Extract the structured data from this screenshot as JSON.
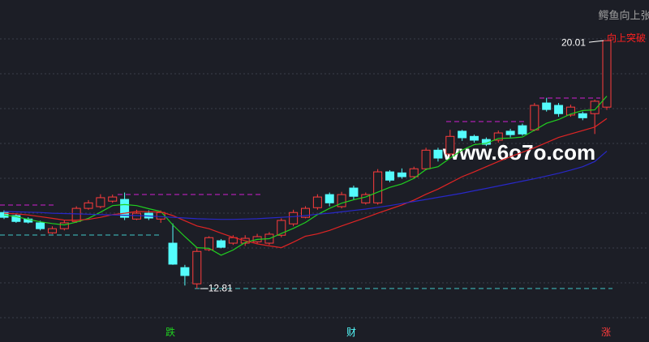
{
  "chart_data": {
    "type": "candlestick",
    "ylim": [
      11.26,
      21.19
    ],
    "up_color": "#ff3c3c",
    "down_color": "#54fcfc",
    "open": [
      15.02,
      14.93,
      14.83,
      14.72,
      14.43,
      14.55,
      14.76,
      15.14,
      15.19,
      15.35,
      15.4,
      14.83,
      15.0,
      14.83,
      14.13,
      13.42,
      12.95,
      13.94,
      14.2,
      14.13,
      14.13,
      14.17,
      14.13,
      14.36,
      14.69,
      14.88,
      15.16,
      15.54,
      15.19,
      15.73,
      15.3,
      15.3,
      16.2,
      16.17,
      16.06,
      16.29,
      16.83,
      16.72,
      17.38,
      17.23,
      17.14,
      17.12,
      17.38,
      17.54,
      17.42,
      18.2,
      18.13,
      17.85,
      17.89,
      17.89,
      18.08
    ],
    "high": [
      15.08,
      14.98,
      14.88,
      14.78,
      14.62,
      14.8,
      15.2,
      15.38,
      15.55,
      15.54,
      15.6,
      15.1,
      15.08,
      15.08,
      14.7,
      13.5,
      14.0,
      14.33,
      14.25,
      14.36,
      14.36,
      14.4,
      14.45,
      14.85,
      15.1,
      15.2,
      15.55,
      15.6,
      15.62,
      15.8,
      15.6,
      16.28,
      16.25,
      16.3,
      16.35,
      16.9,
      16.9,
      17.42,
      17.42,
      17.28,
      17.2,
      17.4,
      17.45,
      17.6,
      18.2,
      18.35,
      18.2,
      18.15,
      17.95,
      18.3,
      20.01
    ],
    "low": [
      14.83,
      14.72,
      14.7,
      14.5,
      14.4,
      14.5,
      14.72,
      15.1,
      15.14,
      15.3,
      14.8,
      14.8,
      14.8,
      14.72,
      13.5,
      12.9,
      12.81,
      13.9,
      13.98,
      14.08,
      14.05,
      14.1,
      14.08,
      14.3,
      14.62,
      14.85,
      15.1,
      15.2,
      15.14,
      15.4,
      15.25,
      15.25,
      15.9,
      16.0,
      16.0,
      16.25,
      16.5,
      16.65,
      17.1,
      17.05,
      16.95,
      17.05,
      17.2,
      17.25,
      17.38,
      17.95,
      17.8,
      17.8,
      17.7,
      17.3,
      18.0
    ],
    "close": [
      14.88,
      14.76,
      14.74,
      14.55,
      14.55,
      14.72,
      15.14,
      15.3,
      15.45,
      15.47,
      14.88,
      15.0,
      14.86,
      15.02,
      13.52,
      13.19,
      13.89,
      14.29,
      14.01,
      14.29,
      14.27,
      14.32,
      14.39,
      14.79,
      15.02,
      15.14,
      15.47,
      15.3,
      15.54,
      15.49,
      15.54,
      16.2,
      15.96,
      16.06,
      16.29,
      16.83,
      16.6,
      17.23,
      17.19,
      17.12,
      17.0,
      17.33,
      17.28,
      17.3,
      18.13,
      18.01,
      17.89,
      18.08,
      17.77,
      18.25,
      20.01
    ],
    "lines": [
      {
        "color": "#20d020",
        "values": [
          14.95,
          14.9,
          14.82,
          14.75,
          14.7,
          14.66,
          14.74,
          14.85,
          15.03,
          15.22,
          15.25,
          15.22,
          15.13,
          15.05,
          14.66,
          14.32,
          14.0,
          13.98,
          13.78,
          13.93,
          14.15,
          14.24,
          14.26,
          14.41,
          14.56,
          14.73,
          14.96,
          15.14,
          15.29,
          15.39,
          15.47,
          15.61,
          15.75,
          15.85,
          16.01,
          16.27,
          16.35,
          16.6,
          16.83,
          16.99,
          17.03,
          17.17,
          17.18,
          17.21,
          17.41,
          17.61,
          17.72,
          17.88,
          17.98,
          18.0,
          18.4
        ]
      },
      {
        "color": "#e02424",
        "values": [
          15.0,
          14.98,
          14.95,
          14.9,
          14.85,
          14.8,
          14.8,
          14.82,
          14.88,
          14.96,
          15.0,
          15.05,
          15.04,
          15.04,
          14.93,
          14.78,
          14.63,
          14.55,
          14.42,
          14.3,
          14.2,
          14.11,
          14.05,
          14.0,
          14.16,
          14.33,
          14.4,
          14.5,
          14.63,
          14.75,
          14.87,
          15.0,
          15.12,
          15.24,
          15.38,
          15.55,
          15.7,
          15.88,
          16.06,
          16.2,
          16.35,
          16.5,
          16.64,
          16.77,
          16.9,
          17.05,
          17.2,
          17.3,
          17.4,
          17.5,
          17.75
        ]
      },
      {
        "color": "#2828c8",
        "values": [
          15.05,
          15.04,
          15.03,
          15.02,
          15.0,
          14.99,
          14.98,
          14.97,
          14.96,
          14.95,
          14.94,
          14.93,
          14.92,
          14.9,
          14.88,
          14.86,
          14.84,
          14.83,
          14.82,
          14.82,
          14.83,
          14.84,
          14.86,
          14.88,
          14.9,
          14.93,
          14.97,
          15.0,
          15.04,
          15.08,
          15.12,
          15.17,
          15.22,
          15.28,
          15.34,
          15.4,
          15.46,
          15.52,
          15.58,
          15.65,
          15.72,
          15.79,
          15.86,
          15.93,
          16.0,
          16.08,
          16.16,
          16.25,
          16.35,
          16.5,
          16.8
        ]
      }
    ],
    "annotations": {
      "high": "20.01",
      "low": "12.81",
      "signal": "向上突破",
      "legend": "鳄鱼向上张"
    },
    "watermark": "www.6o7o.com",
    "markers": [
      {
        "text": "跌",
        "color": "#20d020"
      },
      {
        "text": "财",
        "color": "#54fcfc"
      },
      {
        "text": "涨",
        "color": "#ff3c3c"
      }
    ]
  }
}
